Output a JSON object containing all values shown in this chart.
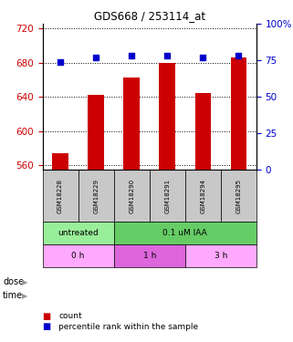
{
  "title": "GDS668 / 253114_at",
  "samples": [
    "GSM18228",
    "GSM18229",
    "GSM18290",
    "GSM18291",
    "GSM18294",
    "GSM18295"
  ],
  "bar_values": [
    574,
    642,
    662,
    679,
    644,
    686
  ],
  "dot_values": [
    74,
    77,
    78,
    78,
    77,
    78
  ],
  "ylim_left": [
    555,
    725
  ],
  "ylim_right": [
    0,
    100
  ],
  "yticks_left": [
    560,
    600,
    640,
    680,
    720
  ],
  "yticks_right": [
    0,
    25,
    50,
    75,
    100
  ],
  "bar_color": "#cc0000",
  "dot_color": "#0000cc",
  "dose_labels": [
    {
      "text": "untreated",
      "start": 0,
      "end": 2,
      "color": "#99ee99"
    },
    {
      "text": "0.1 uM IAA",
      "start": 2,
      "end": 6,
      "color": "#66cc66"
    }
  ],
  "time_labels": [
    {
      "text": "0 h",
      "start": 0,
      "end": 2,
      "color": "#ffaaff"
    },
    {
      "text": "1 h",
      "start": 2,
      "end": 4,
      "color": "#dd66dd"
    },
    {
      "text": "3 h",
      "start": 4,
      "end": 6,
      "color": "#ffaaff"
    }
  ],
  "legend_count_color": "#cc0000",
  "legend_percentile_color": "#0000cc",
  "left_tick_color": "#cc0000",
  "right_tick_color": "#0000cc",
  "background_color": "#ffffff",
  "sample_bg_color": "#c8c8c8",
  "arrow_color": "#999999"
}
